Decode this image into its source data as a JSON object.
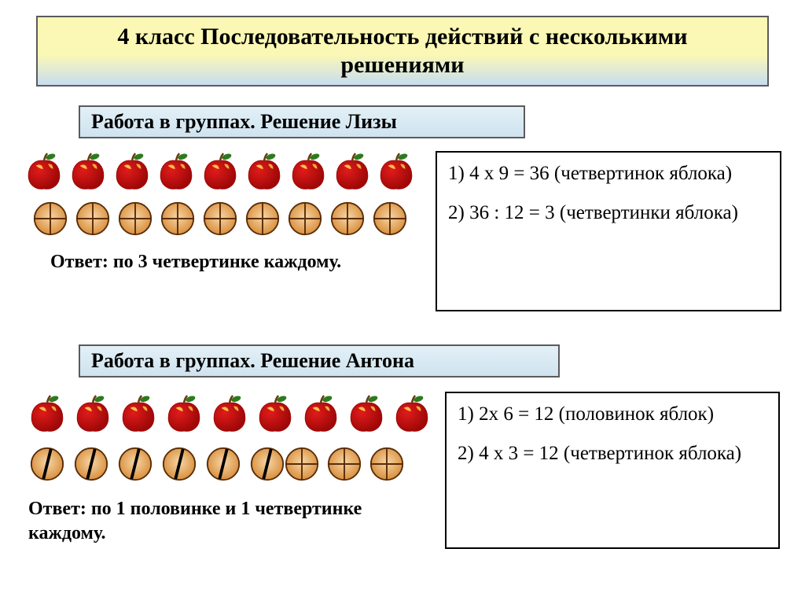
{
  "title": "4 класс Последовательность действий с несколькими решениями",
  "section1": {
    "heading": "Работа в группах. Решение Лизы",
    "apple_count": 9,
    "quarter_count": 9,
    "answer": "Ответ:  по 3 четвертинке каждому.",
    "steps": [
      "1) 4 х 9 = 36 (четвертинок яблока)",
      "2) 36 : 12 = 3 (четвертинки яблока)"
    ]
  },
  "section2": {
    "heading": "Работа в группах. Решение Антона",
    "apple_count": 9,
    "half_count": 6,
    "quarter_count": 3,
    "answer": "Ответ:  по 1 половинке и 1 четвертинке каждому.",
    "steps": [
      "1) 2х 6 = 12 (половинок яблок)",
      "2) 4 х 3 = 12 (четвертинок яблока)"
    ]
  },
  "colors": {
    "apple_body": "#e11b1b",
    "apple_dark": "#a00808",
    "apple_highlight": "#ffd24a",
    "apple_leaf": "#2d7a1e",
    "apple_stem": "#6b3d12",
    "fruit_fill_light": "#f6d6a6",
    "fruit_fill_dark": "#d98f3d",
    "fruit_stroke": "#5a2d09"
  }
}
